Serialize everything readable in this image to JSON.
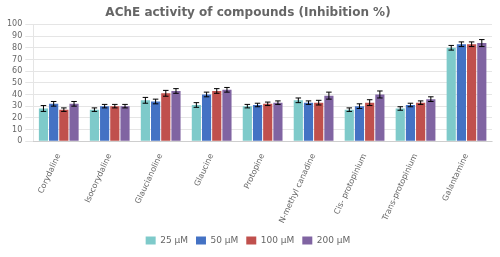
{
  "chart_data": {
    "type": "bar",
    "title": "AChE activity of compounds (Inhibition %)",
    "categories": [
      "Corydaline",
      "Isocorydaline",
      "Glaucianoline",
      "Glaucine",
      "Protopine",
      "N-methyl canadine",
      "Cis- protopinium",
      "Trans-protopinium",
      "Galantamine"
    ],
    "series": [
      {
        "name": "25 μM",
        "color": "#7ecaca",
        "values": [
          28,
          27,
          35,
          31,
          30,
          35,
          27,
          28,
          80
        ],
        "errors": [
          2.5,
          1.5,
          2.5,
          2,
          1.5,
          2,
          1.5,
          1.5,
          2
        ]
      },
      {
        "name": "50 μM",
        "color": "#4472c4",
        "values": [
          32,
          30,
          34,
          40,
          31,
          33,
          30,
          31,
          83
        ],
        "errors": [
          2,
          1.5,
          2,
          2,
          1.5,
          1.5,
          2,
          1.5,
          2
        ]
      },
      {
        "name": "100 μM",
        "color": "#c0504d",
        "values": [
          27,
          30,
          41,
          43,
          32,
          33,
          33,
          33,
          83
        ],
        "errors": [
          1.5,
          1.5,
          2.5,
          2,
          1.5,
          2,
          2.5,
          1.5,
          2
        ]
      },
      {
        "name": "200 μM",
        "color": "#8064a2",
        "values": [
          32,
          30,
          43,
          44,
          33,
          39,
          40,
          36,
          84
        ],
        "errors": [
          2,
          1.5,
          2,
          2,
          1.5,
          3,
          3,
          2,
          3
        ]
      }
    ],
    "ylim": [
      0,
      100
    ],
    "yticks": [
      0,
      10,
      20,
      30,
      40,
      50,
      60,
      70,
      80,
      90,
      100
    ],
    "grid": true,
    "legend": "bottom"
  }
}
